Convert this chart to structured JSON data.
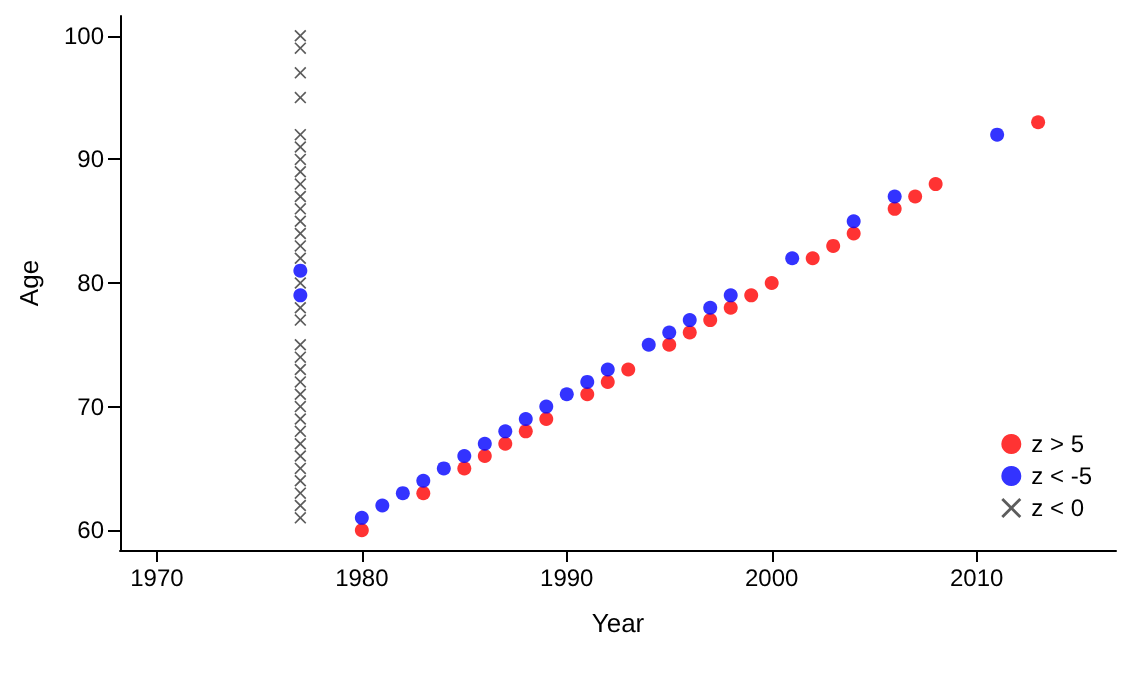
{
  "chart_data": {
    "type": "scatter",
    "xlabel": "Year",
    "ylabel": "Age",
    "xlim": [
      1968.2,
      2016.8
    ],
    "xticks": [
      1970,
      1980,
      1990,
      2000,
      2010
    ],
    "ylim": [
      58.4,
      101.6
    ],
    "yticks": [
      60,
      70,
      80,
      90,
      100
    ],
    "grid": false,
    "legend": "bottom right",
    "series": [
      {
        "name": "z > 5",
        "color": "#ff0000",
        "marker": "circle",
        "x": [
          1980,
          1983,
          1985,
          1986,
          1987,
          1988,
          1989,
          1991,
          1992,
          1993,
          1995,
          1996,
          1997,
          1998,
          1999,
          2000,
          2002,
          2003,
          2004,
          2006,
          2007,
          2008,
          2013
        ],
        "values": [
          60,
          63,
          65,
          66,
          67,
          68,
          69,
          71,
          72,
          73,
          75,
          76,
          77,
          78,
          79,
          80,
          82,
          83,
          84,
          86,
          87,
          88,
          93
        ]
      },
      {
        "name": "z < -5",
        "color": "#0000ff",
        "marker": "circle",
        "x": [
          1977,
          1977,
          1980,
          1981,
          1982,
          1983,
          1984,
          1985,
          1986,
          1987,
          1988,
          1989,
          1990,
          1991,
          1992,
          1994,
          1995,
          1996,
          1997,
          1998,
          2001,
          2004,
          2006,
          2011
        ],
        "values": [
          81,
          79,
          61,
          62,
          63,
          64,
          65,
          66,
          67,
          68,
          69,
          70,
          71,
          72,
          73,
          75,
          76,
          77,
          78,
          79,
          82,
          85,
          87,
          92
        ]
      },
      {
        "name": "z < 0",
        "color": "#333333",
        "marker": "cross",
        "x": [
          1977,
          1977,
          1977,
          1977,
          1977,
          1977,
          1977,
          1977,
          1977,
          1977,
          1977,
          1977,
          1977,
          1977,
          1977,
          1977,
          1977,
          1977,
          1977,
          1977,
          1977,
          1977,
          1977,
          1977,
          1977,
          1977,
          1977,
          1977,
          1977,
          1977,
          1977,
          1977,
          1977
        ],
        "values": [
          61,
          62,
          63,
          64,
          65,
          66,
          67,
          68,
          69,
          70,
          71,
          72,
          73,
          74,
          75,
          77,
          78,
          80,
          82,
          83,
          84,
          85,
          86,
          87,
          88,
          89,
          90,
          91,
          92,
          95,
          97,
          99,
          100
        ]
      }
    ]
  }
}
